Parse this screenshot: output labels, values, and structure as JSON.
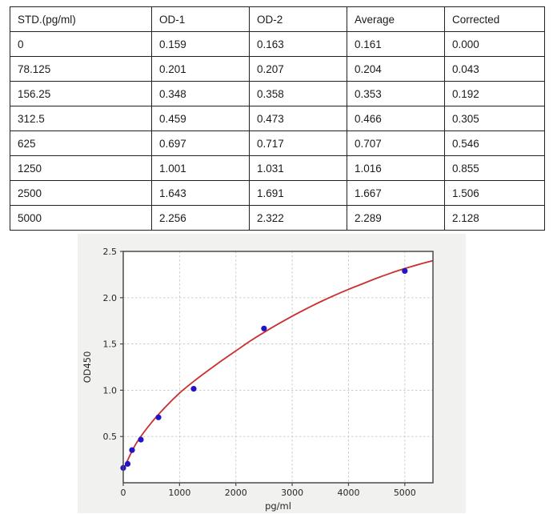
{
  "table": {
    "columns": [
      "STD.(pg/ml)",
      "OD-1",
      "OD-2",
      "Average",
      "Corrected"
    ],
    "rows": [
      [
        "0",
        "0.159",
        "0.163",
        "0.161",
        "0.000"
      ],
      [
        "78.125",
        "0.201",
        "0.207",
        "0.204",
        "0.043"
      ],
      [
        "156.25",
        "0.348",
        "0.358",
        "0.353",
        "0.192"
      ],
      [
        "312.5",
        "0.459",
        "0.473",
        "0.466",
        "0.305"
      ],
      [
        "625",
        "0.697",
        "0.717",
        "0.707",
        "0.546"
      ],
      [
        "1250",
        "1.001",
        "1.031",
        "1.016",
        "0.855"
      ],
      [
        "2500",
        "1.643",
        "1.691",
        "1.667",
        "1.506"
      ],
      [
        "5000",
        "2.256",
        "2.322",
        "2.289",
        "2.128"
      ]
    ]
  },
  "chart_data": {
    "type": "scatter",
    "title": "",
    "xlabel": "pg/ml",
    "ylabel": "OD450",
    "xlim": [
      0,
      5500
    ],
    "ylim": [
      0,
      2.5
    ],
    "x_ticks": [
      0,
      1000,
      2000,
      3000,
      4000,
      5000
    ],
    "y_ticks": [
      0.5,
      1.0,
      1.5,
      2.0,
      2.5
    ],
    "grid": true,
    "legend": "none",
    "series": [
      {
        "name": "standard-points",
        "type": "scatter",
        "color": "#2414c8",
        "x": [
          0,
          78.125,
          156.25,
          312.5,
          625,
          1250,
          2500,
          5000
        ],
        "y": [
          0.161,
          0.204,
          0.353,
          0.466,
          0.707,
          1.016,
          1.667,
          2.289
        ]
      },
      {
        "name": "fit-curve",
        "type": "line",
        "color": "#cb2f2f",
        "x": [
          0,
          100,
          250,
          500,
          750,
          1000,
          1250,
          1500,
          1750,
          2000,
          2250,
          2500,
          2750,
          3000,
          3250,
          3500,
          3750,
          4000,
          4250,
          4500,
          4750,
          5000,
          5250,
          5500
        ],
        "y": [
          0.13,
          0.272,
          0.445,
          0.65,
          0.82,
          0.97,
          1.095,
          1.21,
          1.32,
          1.425,
          1.53,
          1.625,
          1.715,
          1.8,
          1.88,
          1.955,
          2.025,
          2.09,
          2.15,
          2.21,
          2.265,
          2.315,
          2.36,
          2.4
        ]
      }
    ],
    "colors": {
      "figure_bg": "#f1f1ef",
      "plot_bg": "#ffffff",
      "spine": "#4a4a4a",
      "grid": "#c6c6c6",
      "tick_label": "#262626"
    }
  }
}
